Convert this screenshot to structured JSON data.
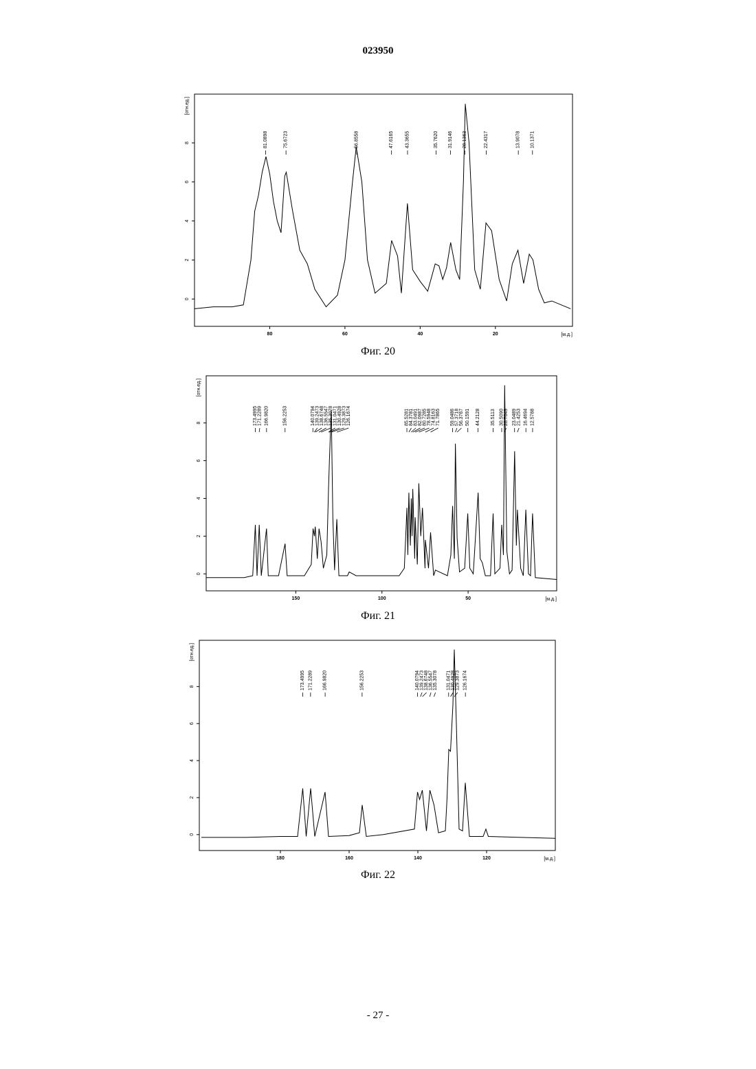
{
  "header": "023950",
  "footer": "- 27 -",
  "chart_data": [
    {
      "type": "line",
      "caption": "Фиг. 20",
      "x_label": "[м.д.]",
      "y_label": "[отн.ед.]",
      "color": "#000000",
      "xlim": [
        100,
        -0.5
      ],
      "ylim": [
        -1.4,
        10.5
      ],
      "xticks": [
        80,
        60,
        40,
        20
      ],
      "yticks": [
        0,
        2,
        4,
        6,
        8
      ],
      "x": [
        100,
        95,
        90,
        87,
        85,
        84,
        83,
        82,
        81,
        80,
        79,
        78,
        77,
        76,
        75.6,
        74,
        72,
        70,
        68,
        65,
        62,
        60,
        58,
        57,
        55.5,
        54,
        52,
        49,
        47.6,
        46,
        45,
        43.4,
        42,
        40,
        38,
        36,
        35,
        34,
        33,
        31.9,
        30.5,
        29.5,
        28.5,
        28,
        27,
        25.5,
        24,
        22.5,
        21,
        19,
        17,
        15.5,
        14,
        12.5,
        11,
        10,
        8.5,
        7,
        5,
        0
      ],
      "values": [
        -0.5,
        -0.4,
        -0.4,
        -0.3,
        2.0,
        4.5,
        5.3,
        6.5,
        7.3,
        6.4,
        5.0,
        4.0,
        3.4,
        6.3,
        6.5,
        4.6,
        2.5,
        1.8,
        0.5,
        -0.4,
        0.2,
        2.0,
        6.0,
        7.8,
        6.0,
        2.0,
        0.3,
        0.8,
        3.0,
        2.2,
        0.3,
        4.9,
        1.5,
        0.9,
        0.4,
        1.8,
        1.7,
        1.0,
        1.6,
        2.9,
        1.5,
        1.0,
        6.0,
        10.0,
        8.0,
        1.5,
        0.5,
        3.9,
        3.5,
        1.0,
        -0.1,
        1.8,
        2.5,
        0.8,
        2.3,
        2.0,
        0.5,
        -0.2,
        -0.1,
        -0.5
      ],
      "peaks": [
        {
          "value": 81.0898,
          "label": "81.0898"
        },
        {
          "value": 75.6723,
          "label": "75.6723"
        },
        {
          "value": 56.8558,
          "label": "56.8558"
        },
        {
          "value": 47.6165,
          "label": "47.6165"
        },
        {
          "value": 43.3655,
          "label": "43.3655"
        },
        {
          "value": 35.762,
          "label": "35.7620"
        },
        {
          "value": 31.9146,
          "label": "31.9146"
        },
        {
          "value": 28.1363,
          "label": "28.1363"
        },
        {
          "value": 22.4317,
          "label": "22.4317"
        },
        {
          "value": 13.9078,
          "label": "13.9078"
        },
        {
          "value": 10.1371,
          "label": "10.1371"
        }
      ]
    },
    {
      "type": "line",
      "caption": "Фиг. 21",
      "x_label": "[м.д.]",
      "y_label": "[отн.ед.]",
      "color": "#000000",
      "xlim": [
        202,
        -1.4
      ],
      "ylim": [
        -0.9,
        10.5
      ],
      "xticks": [
        150,
        100,
        50
      ],
      "yticks": [
        0,
        2,
        4,
        6,
        8
      ],
      "x": [
        202,
        180,
        175,
        173.5,
        172.5,
        171.2,
        170,
        167,
        166,
        160,
        156.2,
        155,
        145,
        141,
        140,
        139.2,
        138.7,
        137.5,
        136.5,
        135.3,
        134,
        132,
        131,
        130.5,
        129.4,
        128.5,
        127.5,
        126.2,
        125,
        120,
        119,
        115,
        90,
        87,
        85.5,
        85,
        84.4,
        83.5,
        83,
        82.5,
        82.1,
        81,
        80.7,
        79.5,
        78.6,
        77.5,
        76.5,
        75,
        74.8,
        73,
        71.8,
        70,
        69,
        62,
        60,
        59,
        58,
        57.4,
        56.4,
        55,
        52,
        50.2,
        49,
        47,
        44.2,
        43,
        41.8,
        40,
        37,
        35.5,
        34.5,
        31.5,
        30.5,
        29.5,
        28.8,
        27.5,
        26,
        24.5,
        23,
        22,
        21.4,
        19.5,
        18,
        16.5,
        15,
        13.8,
        12.6,
        11,
        -1.4
      ],
      "values": [
        -0.2,
        -0.2,
        -0.1,
        2.6,
        -0.1,
        2.6,
        -0.1,
        2.4,
        -0.1,
        -0.1,
        1.6,
        -0.1,
        -0.1,
        0.5,
        2.4,
        2.0,
        2.5,
        0.8,
        2.4,
        1.7,
        0.3,
        1.0,
        4.5,
        6.0,
        8.7,
        3.0,
        0.2,
        2.9,
        -0.1,
        -0.1,
        0.1,
        -0.1,
        -0.1,
        0.3,
        3.5,
        1.0,
        4.3,
        1.5,
        4.0,
        2.0,
        4.5,
        0.8,
        3.0,
        0.5,
        4.8,
        2.0,
        3.5,
        0.3,
        1.8,
        0.3,
        2.2,
        -0.1,
        0.2,
        -0.1,
        1.0,
        3.6,
        0.8,
        6.9,
        1.9,
        0.1,
        0.3,
        3.2,
        0.3,
        0,
        4.3,
        0.8,
        0.6,
        -0.1,
        -0.1,
        3.2,
        0,
        0.3,
        2.6,
        1.0,
        10.0,
        1.2,
        0,
        0.2,
        6.5,
        1.5,
        3.4,
        0.3,
        -0.1,
        3.4,
        0,
        -0.1,
        3.2,
        -0.2,
        -0.3
      ],
      "peaks": [
        {
          "value": 173.4995,
          "label": "173.4995"
        },
        {
          "value": 171.2289,
          "label": "171.2289"
        },
        {
          "value": 166.982,
          "label": "166.9820"
        },
        {
          "value": 156.2253,
          "label": "156.2253"
        },
        {
          "value": 140.0794,
          "label": "140.0794"
        },
        {
          "value": 139.2473,
          "label": "139.2473"
        },
        {
          "value": 138.6748,
          "label": "138.6748"
        },
        {
          "value": 136.5547,
          "label": "136.5547"
        },
        {
          "value": 135.3078,
          "label": "135.3078"
        },
        {
          "value": 131.0471,
          "label": "131.0471"
        },
        {
          "value": 130.4928,
          "label": "130.4928"
        },
        {
          "value": 129.3873,
          "label": "129.3873"
        },
        {
          "value": 126.1674,
          "label": "126.1674"
        },
        {
          "value": 85.5281,
          "label": "85.5281"
        },
        {
          "value": 84.3781,
          "label": "84.3781"
        },
        {
          "value": 83.0491,
          "label": "83.0491"
        },
        {
          "value": 82.0987,
          "label": "82.0987"
        },
        {
          "value": 80.7285,
          "label": "80.7285"
        },
        {
          "value": 78.5948,
          "label": "78.5948"
        },
        {
          "value": 74.8163,
          "label": "74.8163"
        },
        {
          "value": 71.7865,
          "label": "71.7865"
        },
        {
          "value": 59.0486,
          "label": "59.0486"
        },
        {
          "value": 57.3718,
          "label": "57.3718"
        },
        {
          "value": 56.3767,
          "label": "56.3767"
        },
        {
          "value": 50.1591,
          "label": "50.1591"
        },
        {
          "value": 44.2128,
          "label": "44.2128"
        },
        {
          "value": 35.5113,
          "label": "35.5113"
        },
        {
          "value": 30.509,
          "label": "30.5090"
        },
        {
          "value": 28.7649,
          "label": "28.7649"
        },
        {
          "value": 23.0489,
          "label": "23.0489"
        },
        {
          "value": 21.4253,
          "label": "21.4253"
        },
        {
          "value": 16.4694,
          "label": "16.4694"
        },
        {
          "value": 12.5788,
          "label": "12.5788"
        }
      ]
    },
    {
      "type": "line",
      "caption": "Фиг. 22",
      "x_label": "[м.д.]",
      "y_label": "[отн.ед.]",
      "color": "#000000",
      "xlim": [
        203.6,
        100
      ],
      "ylim": [
        -0.86,
        10.5
      ],
      "xticks": [
        180,
        160,
        140,
        120
      ],
      "yticks": [
        0,
        2,
        4,
        6,
        8
      ],
      "x": [
        203,
        190,
        180,
        175,
        173.5,
        172.5,
        171.2,
        170,
        167,
        166,
        160,
        157,
        156.2,
        155,
        150,
        141,
        140.1,
        139.5,
        138.7,
        137.5,
        136.5,
        135.3,
        134,
        132,
        131.5,
        131,
        130.5,
        129.8,
        129.4,
        128.8,
        128,
        127,
        126.2,
        125,
        121,
        120.2,
        119.5,
        110,
        100
      ],
      "values": [
        -0.15,
        -0.15,
        -0.1,
        -0.1,
        2.5,
        -0.1,
        2.5,
        -0.1,
        2.3,
        -0.1,
        -0.05,
        0.1,
        1.6,
        -0.1,
        0,
        0.3,
        2.3,
        1.9,
        2.4,
        0.2,
        2.4,
        1.6,
        0.1,
        0.2,
        2.0,
        4.6,
        4.5,
        7.0,
        10.0,
        6.0,
        0.3,
        0.2,
        2.8,
        -0.1,
        -0.1,
        0.3,
        -0.1,
        -0.15,
        -0.2
      ],
      "peaks": [
        {
          "value": 173.4995,
          "label": "173.4995"
        },
        {
          "value": 171.2289,
          "label": "171.2289"
        },
        {
          "value": 166.982,
          "label": "166.9820"
        },
        {
          "value": 156.2253,
          "label": "156.2253"
        },
        {
          "value": 140.0794,
          "label": "140.0794"
        },
        {
          "value": 139.2473,
          "label": "139.2473"
        },
        {
          "value": 138.6748,
          "label": "138.6748"
        },
        {
          "value": 136.5547,
          "label": "136.5547"
        },
        {
          "value": 135.3078,
          "label": "135.3078"
        },
        {
          "value": 131.0471,
          "label": "131.0471"
        },
        {
          "value": 130.4928,
          "label": "130.4928"
        },
        {
          "value": 129.3873,
          "label": "129.3873"
        },
        {
          "value": 126.1674,
          "label": "126.1674"
        }
      ]
    }
  ]
}
